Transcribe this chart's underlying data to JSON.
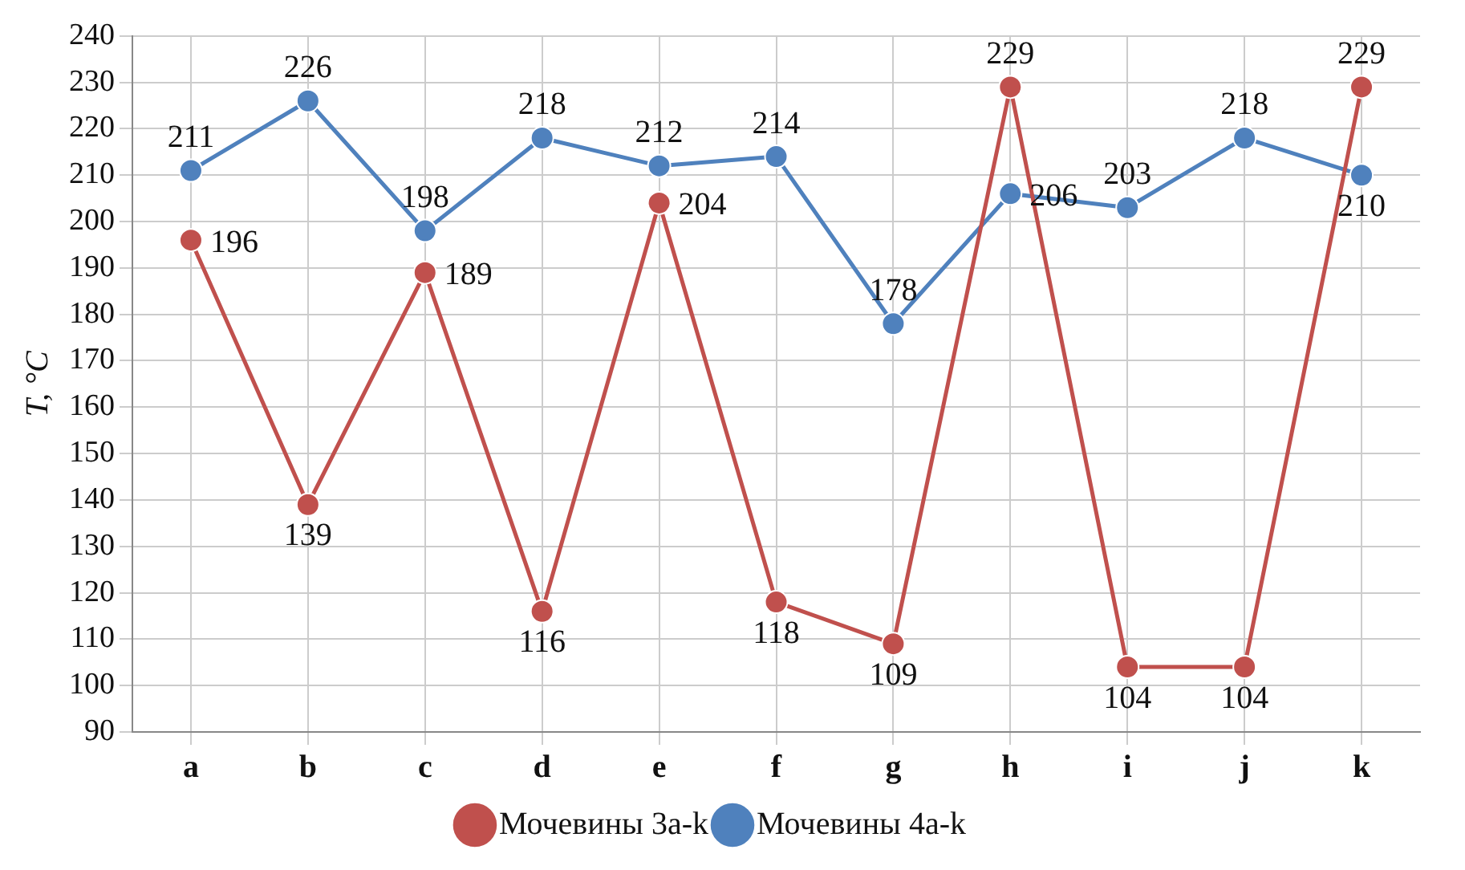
{
  "chart_data": {
    "type": "line",
    "ylabel": "T, °C",
    "categories": [
      "a",
      "b",
      "c",
      "d",
      "e",
      "f",
      "g",
      "h",
      "i",
      "j",
      "k"
    ],
    "series": [
      {
        "name": "Мочевины 3a-k",
        "color": "#c0504d",
        "values": [
          196,
          139,
          189,
          116,
          204,
          118,
          109,
          229,
          104,
          104,
          229
        ]
      },
      {
        "name": "Мочевины 4a-k",
        "color": "#4f81bd",
        "values": [
          211,
          226,
          198,
          218,
          212,
          214,
          178,
          206,
          203,
          218,
          210
        ]
      }
    ],
    "ylim": [
      90,
      240
    ],
    "yticks": [
      90,
      100,
      110,
      120,
      130,
      140,
      150,
      160,
      170,
      180,
      190,
      200,
      210,
      220,
      230,
      240
    ],
    "grid": true,
    "legend": "bottom",
    "marker": "circle",
    "line_style": "solid",
    "data_labels": true
  }
}
